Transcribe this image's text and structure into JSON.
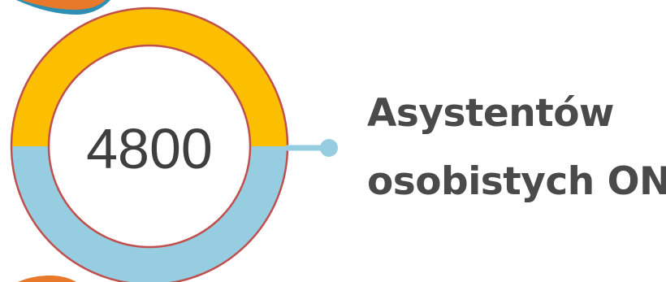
{
  "stat": {
    "value": "4800",
    "label_line1": "Asystentów",
    "label_line2": "osobistych ON"
  },
  "colors": {
    "ring_top": "#fcbf00",
    "ring_bottom": "#96cde0",
    "ring_outline": "#c0504d",
    "connector": "#96cde0",
    "orange_accent": "#e8792a",
    "text": "#4a4a4a"
  }
}
